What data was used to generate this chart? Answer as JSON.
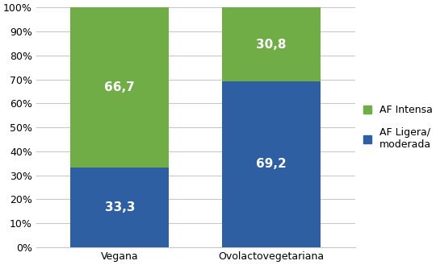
{
  "categories": [
    "Vegana",
    "Ovolactovegetariana"
  ],
  "af_ligera": [
    33.3,
    69.2
  ],
  "af_intensa": [
    66.7,
    30.8
  ],
  "color_ligera": "#2E5FA3",
  "color_intensa": "#70AD47",
  "label_ligera": "AF Ligera/\nmoderada",
  "label_intensa": "AF Intensa",
  "ylim": [
    0,
    1.0
  ],
  "yticks": [
    0,
    0.1,
    0.2,
    0.3,
    0.4,
    0.5,
    0.6,
    0.7,
    0.8,
    0.9,
    1.0
  ],
  "yticklabels": [
    "0%",
    "10%",
    "20%",
    "30%",
    "40%",
    "50%",
    "60%",
    "70%",
    "80%",
    "90%",
    "100%"
  ],
  "bar_width": 0.65,
  "label_fontsize": 11,
  "tick_fontsize": 9,
  "legend_fontsize": 9,
  "background_color": "#FFFFFF",
  "grid_color": "#C8C8C8",
  "x_positions": [
    0,
    1
  ]
}
